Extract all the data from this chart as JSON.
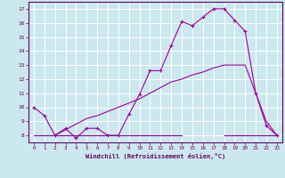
{
  "background_color": "#cce8ef",
  "grid_color": "#ffffff",
  "line_color": "#990099",
  "xlabel": "Windchill (Refroidissement éolien,°C)",
  "xlim": [
    -0.5,
    23.5
  ],
  "ylim": [
    7.5,
    17.5
  ],
  "yticks": [
    8,
    9,
    10,
    11,
    12,
    13,
    14,
    15,
    16,
    17
  ],
  "xticks": [
    0,
    1,
    2,
    3,
    4,
    5,
    6,
    7,
    8,
    9,
    10,
    11,
    12,
    13,
    14,
    15,
    16,
    17,
    18,
    19,
    20,
    21,
    22,
    23
  ],
  "line1_x": [
    0,
    1,
    2,
    3,
    4,
    5,
    6,
    7,
    8,
    9,
    10,
    11,
    12,
    13,
    14,
    15,
    16,
    17,
    18,
    19,
    20,
    21,
    22,
    23
  ],
  "line1_y": [
    10.0,
    9.4,
    8.0,
    8.5,
    7.8,
    8.5,
    8.5,
    8.0,
    8.0,
    9.5,
    10.9,
    12.6,
    12.6,
    14.4,
    16.1,
    15.8,
    16.4,
    17.0,
    17.0,
    16.2,
    15.4,
    11.0,
    8.7,
    8.0
  ],
  "line2_x": [
    0,
    1,
    2,
    3,
    4,
    5,
    6,
    7,
    8,
    9,
    10,
    11,
    12,
    13,
    14
  ],
  "line2_y": [
    8.0,
    8.0,
    8.0,
    8.0,
    8.0,
    8.0,
    8.0,
    8.0,
    8.0,
    8.0,
    8.0,
    8.0,
    8.0,
    8.0,
    8.0
  ],
  "line3_x": [
    2,
    3,
    4,
    5,
    6,
    7,
    8,
    9,
    10,
    11,
    12,
    13,
    14,
    15,
    16,
    17,
    18,
    19,
    20,
    21,
    22,
    23
  ],
  "line3_y": [
    8.0,
    8.4,
    8.8,
    9.2,
    9.4,
    9.7,
    10.0,
    10.3,
    10.6,
    11.0,
    11.4,
    11.8,
    12.0,
    12.3,
    12.5,
    12.8,
    13.0,
    13.0,
    13.0,
    11.0,
    9.0,
    8.0
  ],
  "line4_x": [
    18,
    19,
    20,
    21,
    22,
    23
  ],
  "line4_y": [
    8.0,
    8.0,
    8.0,
    8.0,
    8.0,
    8.0
  ]
}
